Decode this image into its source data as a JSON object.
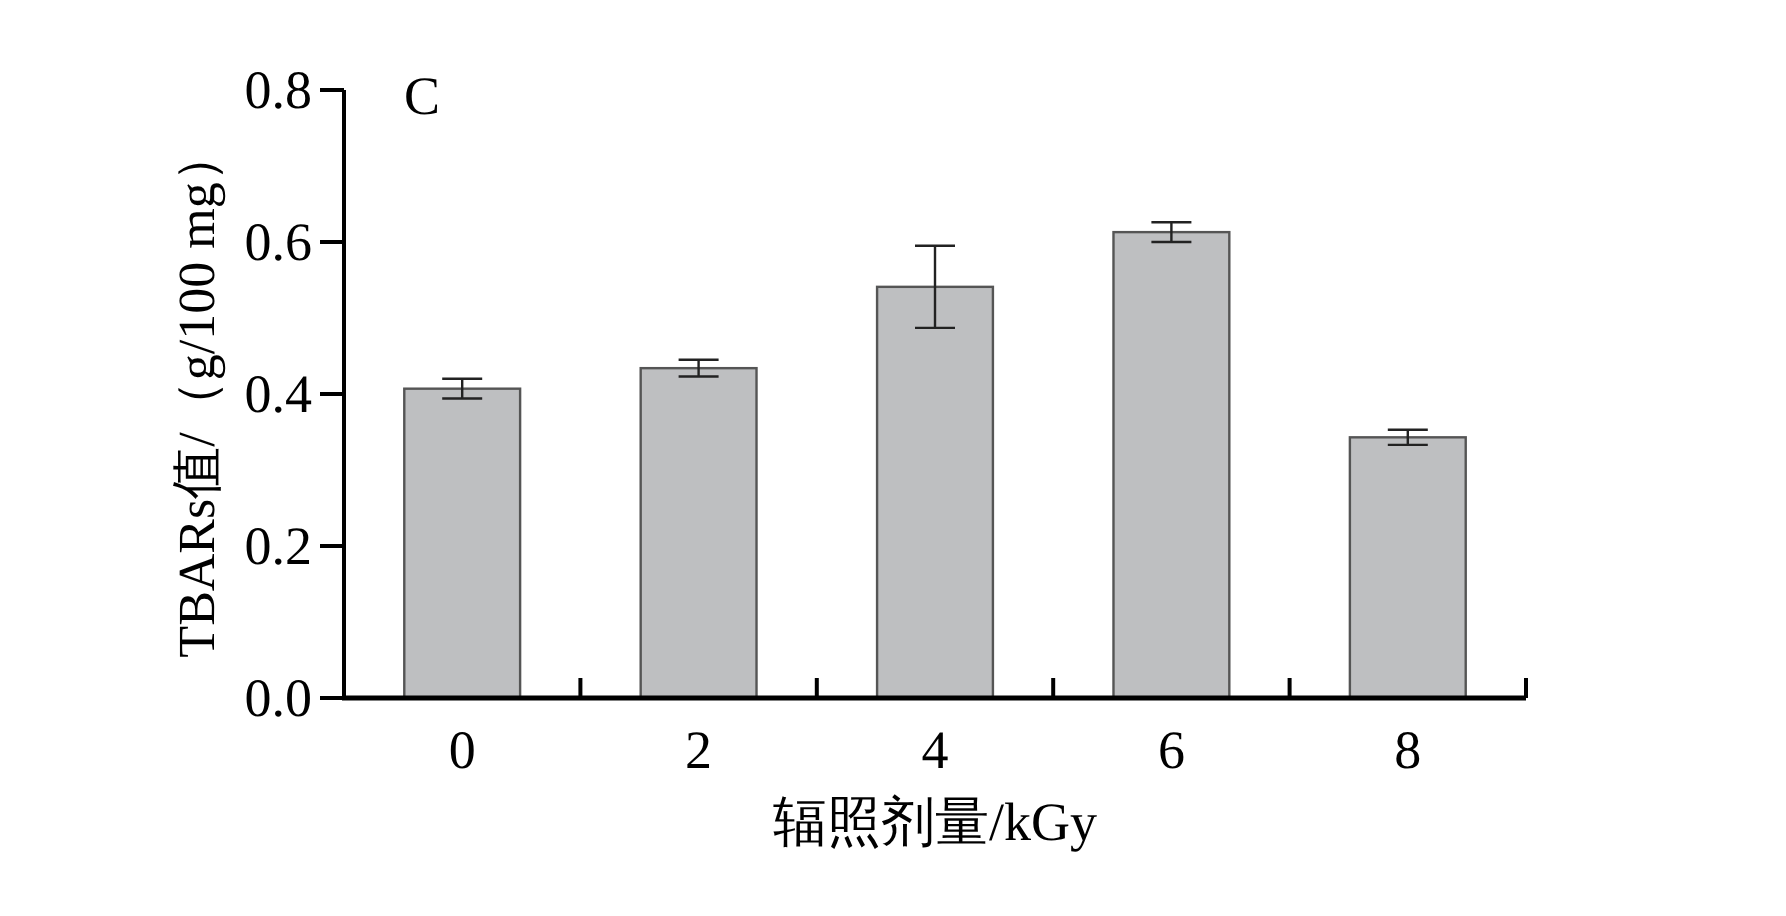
{
  "chart_data": {
    "type": "bar",
    "xlabel": "辐照剂量/kGy",
    "ylabel": "TBARs值/（g/100 mg）",
    "annotations": [
      "C"
    ],
    "categories": [
      "0",
      "2",
      "4",
      "6",
      "8"
    ],
    "values": [
      0.407,
      0.434,
      0.541,
      0.613,
      0.343
    ],
    "errors": [
      0.013,
      0.011,
      0.054,
      0.013,
      0.01
    ],
    "color": "#bebfc1",
    "ylim": [
      0,
      0.8
    ],
    "yticks": [
      {
        "value": 0,
        "label": "0.0"
      },
      0.2,
      0.4,
      0.6,
      0.8
    ]
  }
}
